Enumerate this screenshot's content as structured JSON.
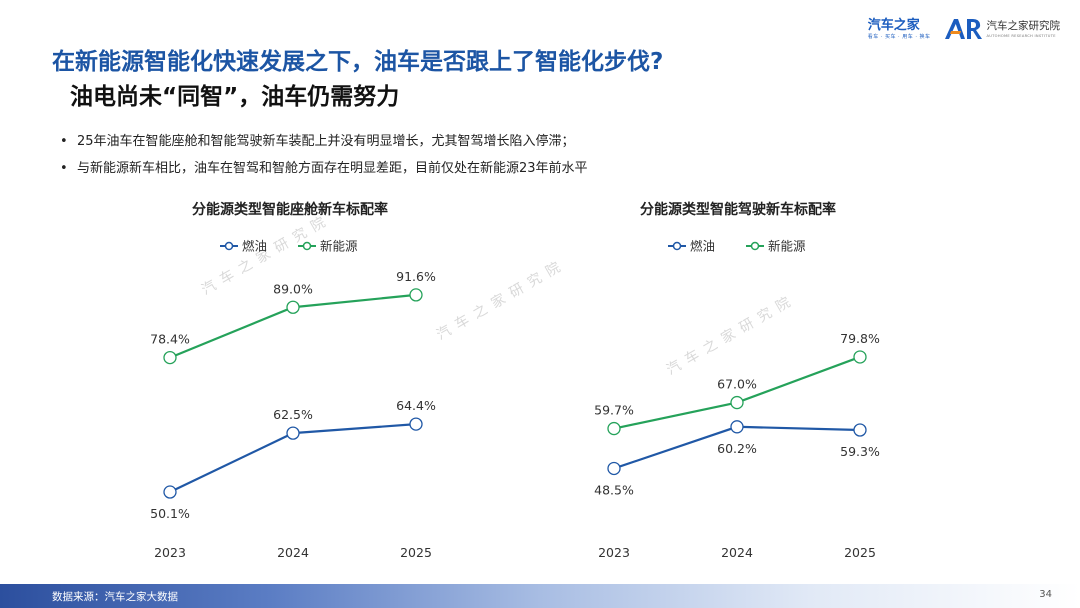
{
  "header": {
    "title": "在新能源智能化快速发展之下，油车是否跟上了智能化步伐?",
    "subtitle": "油电尚未“同智”，油车仍需努力"
  },
  "brand": {
    "autohome_name": "汽车之家",
    "autohome_tagline": "看车 · 买车 · 用车 · 换车",
    "institute_name": "汽车之家研究院",
    "institute_tagline": "AUTOHOME RESEARCH INSTITUTE"
  },
  "bullets": [
    "25年油车在智能座舱和智能驾驶新车装配上并没有明显增长，尤其智驾增长陷入停滞；",
    "与新能源新车相比，油车在智驾和智舱方面存在明显差距，目前仅处在新能源23年前水平"
  ],
  "watermark_text": "汽车之家研究院",
  "colors": {
    "fuel": "#2058a6",
    "nev": "#25a25a",
    "title": "#1c55a4"
  },
  "chart_data": [
    {
      "type": "line",
      "title": "分能源类型智能座舱新车标配率",
      "categories": [
        "2023",
        "2024",
        "2025"
      ],
      "series": [
        {
          "name": "燃油",
          "values": [
            50.1,
            62.5,
            64.4
          ],
          "labels": [
            "50.1%",
            "62.5%",
            "64.4%"
          ]
        },
        {
          "name": "新能源",
          "values": [
            78.4,
            89.0,
            91.6
          ],
          "labels": [
            "78.4%",
            "89.0%",
            "91.6%"
          ]
        }
      ],
      "ylim": [
        40,
        100
      ],
      "grid": false,
      "legend": "top-center"
    },
    {
      "type": "line",
      "title": "分能源类型智能驾驶新车标配率",
      "categories": [
        "2023",
        "2024",
        "2025"
      ],
      "series": [
        {
          "name": "燃油",
          "values": [
            48.5,
            60.2,
            59.3
          ],
          "labels": [
            "48.5%",
            "60.2%",
            "59.3%"
          ]
        },
        {
          "name": "新能源",
          "values": [
            59.7,
            67.0,
            79.8
          ],
          "labels": [
            "59.7%",
            "67.0%",
            "79.8%"
          ]
        }
      ],
      "ylim": [
        20,
        100
      ],
      "grid": false,
      "legend": "top-center"
    }
  ],
  "footer": {
    "source": "数据来源：汽车之家大数据",
    "page": "34"
  }
}
